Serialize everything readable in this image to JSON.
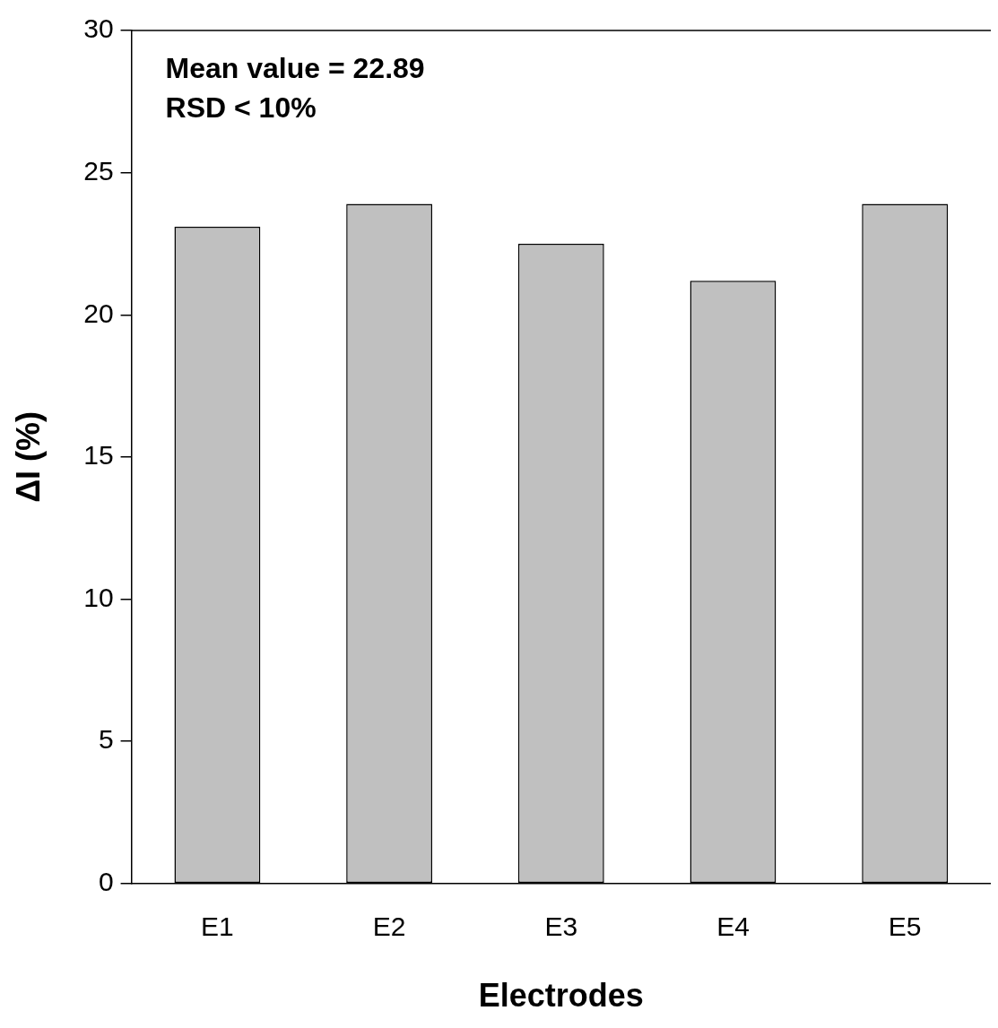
{
  "chart_data": {
    "type": "bar",
    "xlabel": "Electrodes",
    "ylabel": "ΔI (%)",
    "categories": [
      "E1",
      "E2",
      "E3",
      "E4",
      "E5"
    ],
    "values": [
      23.1,
      23.9,
      22.5,
      21.2,
      23.9
    ],
    "color": "#c0c0c0",
    "ylim": [
      0,
      30
    ],
    "yticks": [
      0,
      5,
      10,
      15,
      20,
      25,
      30
    ],
    "grid": false,
    "legend": false,
    "annotations": [
      "Mean value = 22.89",
      "RSD < 10%"
    ]
  }
}
